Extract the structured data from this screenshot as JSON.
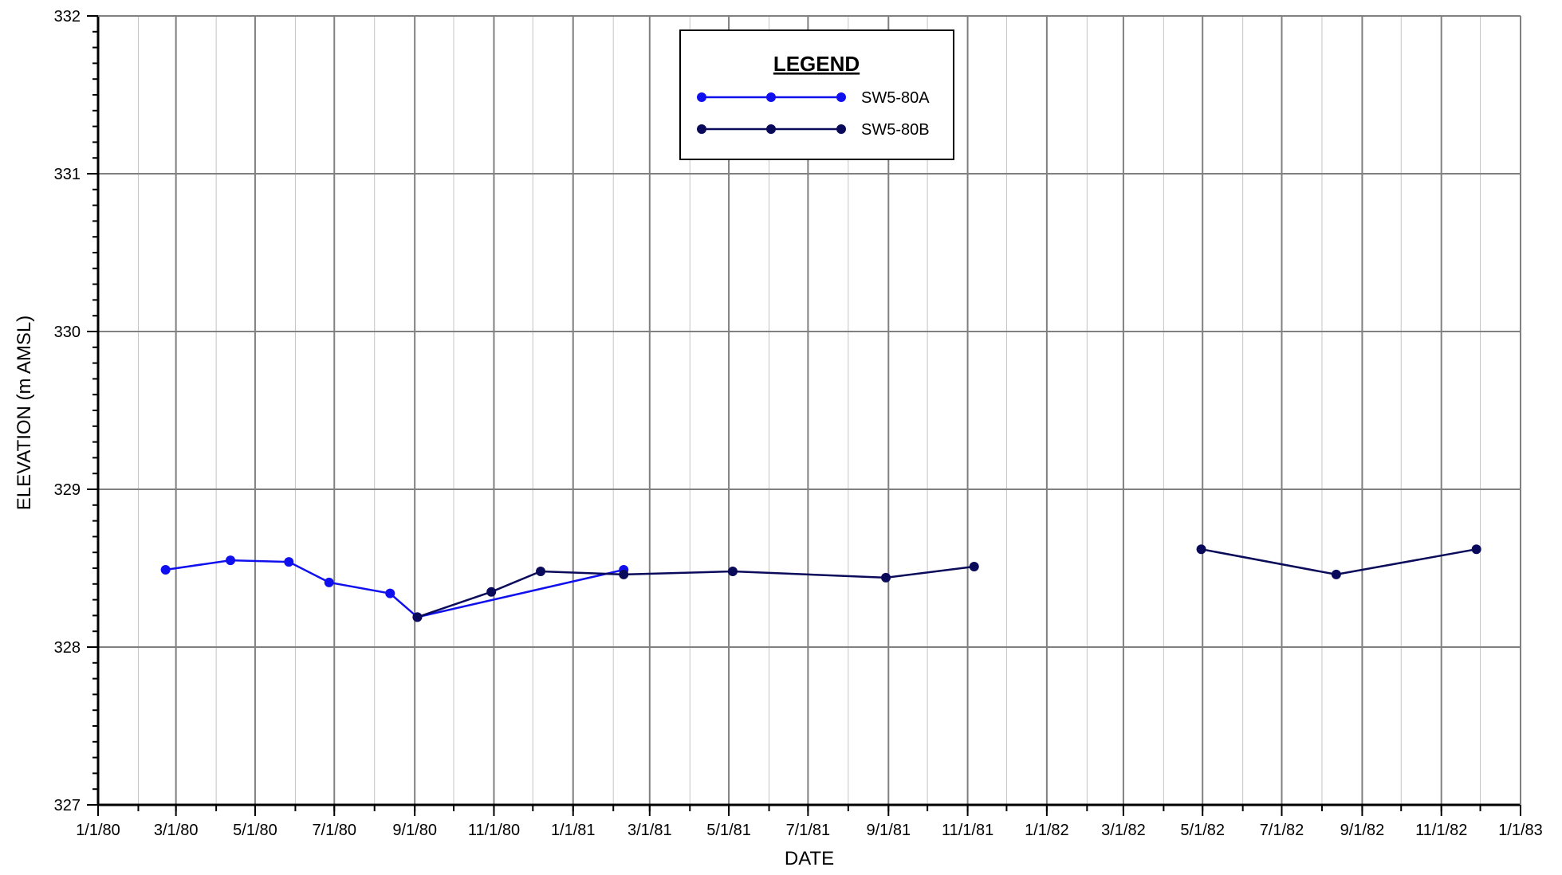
{
  "chart_data": {
    "type": "line",
    "title": "",
    "xlabel": "DATE",
    "ylabel": "ELEVATION (m AMSL)",
    "xlim": [
      "1980-01-01",
      "1983-01-01"
    ],
    "ylim": [
      327,
      332
    ],
    "grid": true,
    "x_tick_labels": [
      "1/1/80",
      "3/1/80",
      "5/1/80",
      "7/1/80",
      "9/1/80",
      "11/1/80",
      "1/1/81",
      "3/1/81",
      "5/1/81",
      "7/1/81",
      "9/1/81",
      "11/1/81",
      "1/1/82",
      "3/1/82",
      "5/1/82",
      "7/1/82",
      "9/1/82",
      "11/1/82",
      "1/1/83"
    ],
    "x_tick_dates": [
      "1980-01-01",
      "1980-03-01",
      "1980-05-01",
      "1980-07-01",
      "1980-09-01",
      "1980-11-01",
      "1981-01-01",
      "1981-03-01",
      "1981-05-01",
      "1981-07-01",
      "1981-09-01",
      "1981-11-01",
      "1982-01-01",
      "1982-03-01",
      "1982-05-01",
      "1982-07-01",
      "1982-09-01",
      "1982-11-01",
      "1983-01-01"
    ],
    "y_ticks": [
      327,
      328,
      329,
      330,
      331,
      332
    ],
    "legend": {
      "title": "LEGEND",
      "position": "top-center"
    },
    "series": [
      {
        "name": "SW5-80A",
        "color": "#1010ee",
        "segments": [
          [
            {
              "x": "1980-02-22",
              "y": 328.49
            },
            {
              "x": "1980-04-12",
              "y": 328.55
            },
            {
              "x": "1980-05-27",
              "y": 328.54
            },
            {
              "x": "1980-06-27",
              "y": 328.41
            },
            {
              "x": "1980-08-13",
              "y": 328.34
            },
            {
              "x": "1980-09-03",
              "y": 328.19
            },
            {
              "x": "1981-02-09",
              "y": 328.49
            }
          ]
        ]
      },
      {
        "name": "SW5-80B",
        "color": "#0a0a5a",
        "segments": [
          [
            {
              "x": "1980-09-03",
              "y": 328.19
            },
            {
              "x": "1980-10-30",
              "y": 328.35
            },
            {
              "x": "1980-12-07",
              "y": 328.48
            },
            {
              "x": "1981-02-09",
              "y": 328.46
            },
            {
              "x": "1981-05-04",
              "y": 328.48
            },
            {
              "x": "1981-08-30",
              "y": 328.44
            },
            {
              "x": "1981-11-06",
              "y": 328.51
            }
          ],
          [
            {
              "x": "1982-04-30",
              "y": 328.62
            },
            {
              "x": "1982-08-12",
              "y": 328.46
            },
            {
              "x": "1982-11-28",
              "y": 328.62
            }
          ]
        ]
      }
    ]
  }
}
